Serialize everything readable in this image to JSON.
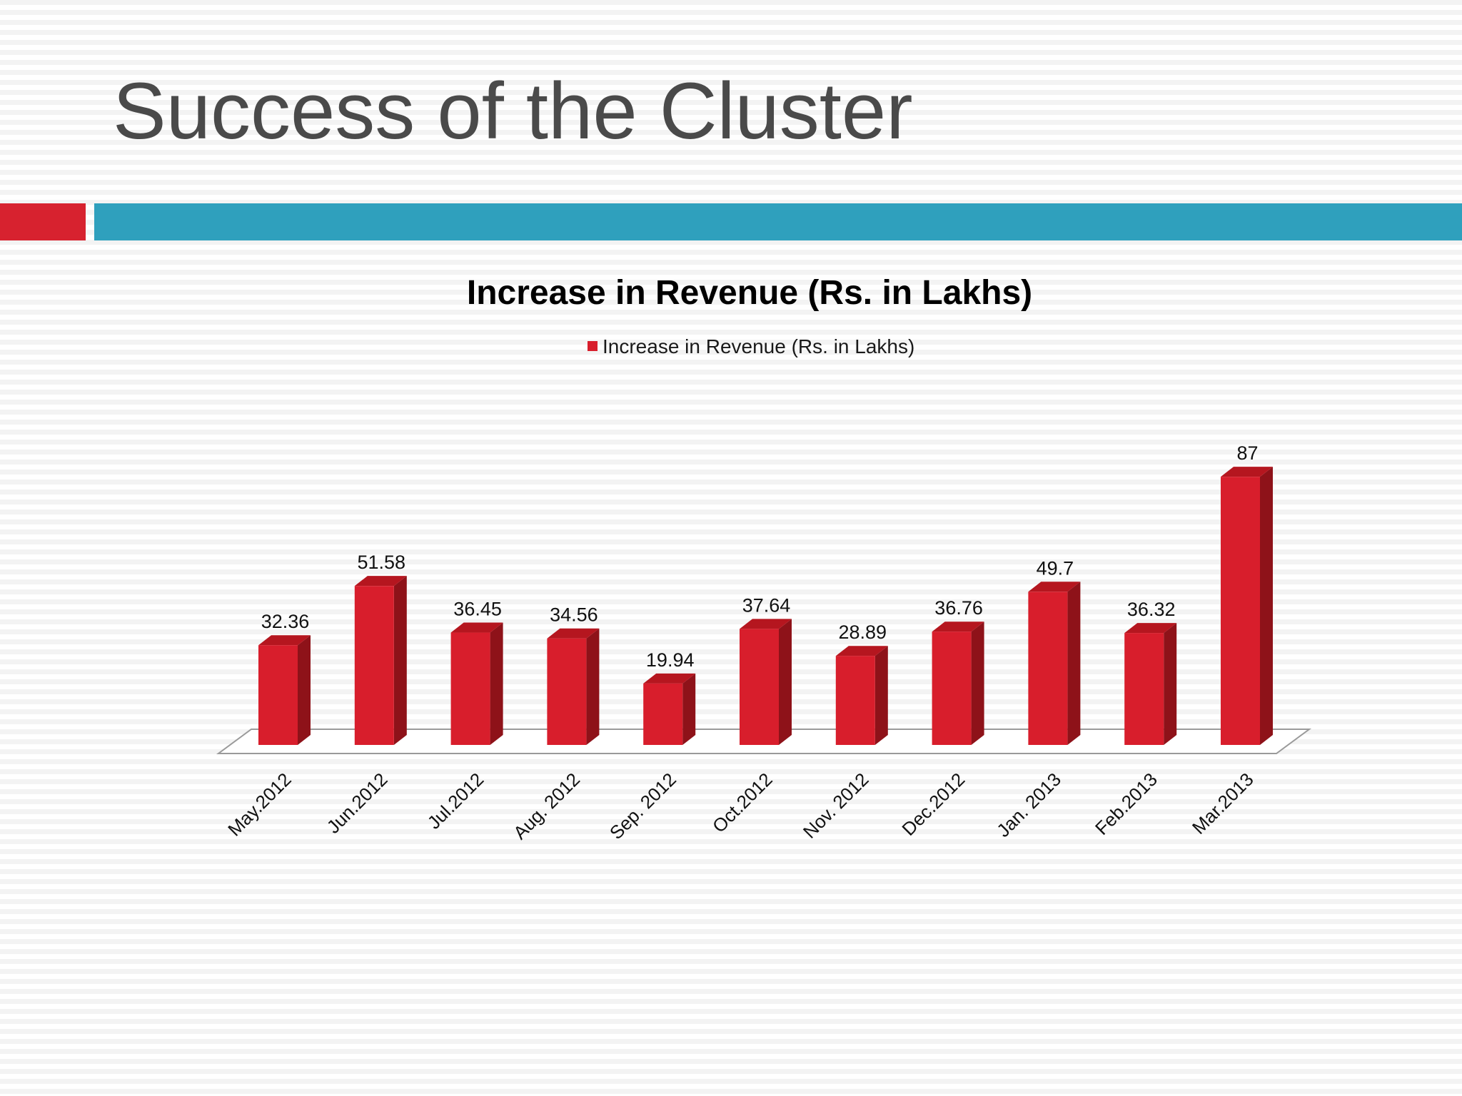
{
  "slide": {
    "title": "Success of the Cluster"
  },
  "colors": {
    "title_text": "#4a4a4a",
    "accent_red": "#d7222f",
    "accent_teal": "#2fa0bd",
    "bar_front": "#d81e2c",
    "bar_side": "#8e1219",
    "bar_top": "#b5161f"
  },
  "chart_data": {
    "type": "bar",
    "style": "3d-column",
    "title": "Increase in Revenue (Rs. in Lakhs)",
    "xlabel": "",
    "ylabel": "",
    "ylim": [
      0,
      90
    ],
    "grid": false,
    "legend_position": "top",
    "categories": [
      "May.2012",
      "Jun.2012",
      "Jul.2012",
      "Aug. 2012",
      "Sep. 2012",
      "Oct.2012",
      "Nov. 2012",
      "Dec.2012",
      "Jan. 2013",
      "Feb.2013",
      "Mar.2013"
    ],
    "series": [
      {
        "name": "Increase in Revenue (Rs. in Lakhs)",
        "color": "#d81e2c",
        "values": [
          32.36,
          51.58,
          36.45,
          34.56,
          19.94,
          37.64,
          28.89,
          36.76,
          49.7,
          36.32,
          87
        ],
        "labels": [
          "32.36",
          "51.58",
          "36.45",
          "34.56",
          "19.94",
          "37.64",
          "28.89",
          "36.76",
          "49.7",
          "36.32",
          "87"
        ]
      }
    ]
  }
}
